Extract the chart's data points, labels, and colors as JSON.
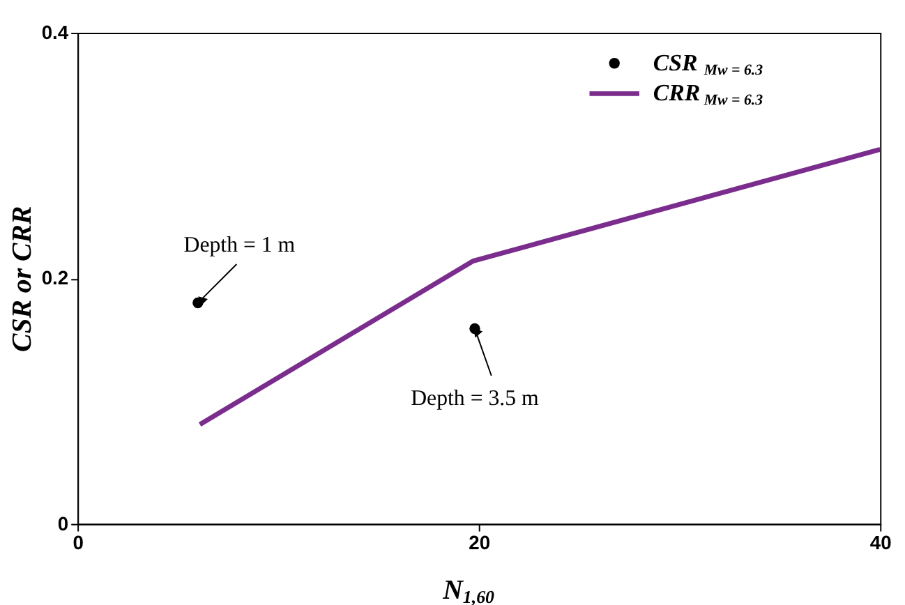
{
  "chart_data": {
    "type": "scatter",
    "xlabel": "N$_{1,60}$",
    "ylabel": "CSR or CRR",
    "xlim": [
      0,
      40
    ],
    "xticks": [
      0,
      20,
      40
    ],
    "ylim": [
      0,
      0.4
    ],
    "yticks": [
      0,
      {
        "value": 0.2,
        "label": "0.2"
      },
      {
        "value": 0.4,
        "label": "0.4"
      }
    ],
    "grid": false,
    "legend": "top right",
    "series": [
      {
        "name": "CSR$_{Mw = 6.3}$",
        "marker": "circle",
        "color": "#000000",
        "x": [
          6,
          19.8
        ],
        "values": [
          0.18,
          0.159
        ]
      },
      {
        "name": "CRR$_{Mw = 6.3}$",
        "type": "line",
        "marker": "none",
        "line_style": "solid",
        "color": "#7b2d8e",
        "x": [
          6.1,
          19.7,
          40
        ],
        "values": [
          0.081,
          0.214,
          0.305
        ]
      }
    ],
    "annotations": [
      {
        "text": "Depth = 1 m",
        "x": 6,
        "y": 0.18
      },
      {
        "text": "Depth = 3.5 m",
        "x": 19.8,
        "y": 0.159
      }
    ]
  }
}
